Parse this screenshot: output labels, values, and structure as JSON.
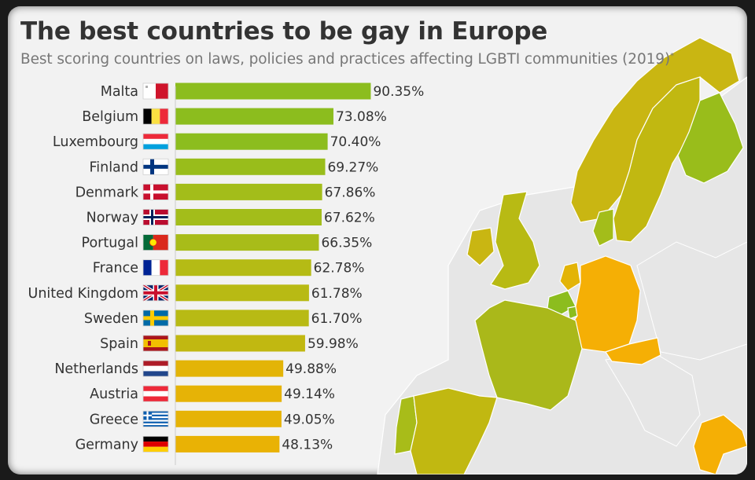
{
  "header": {
    "title": "The best countries to be gay in Europe",
    "subtitle": "Best scoring countries on laws, policies and practices affecting LGBTI communities (2019)",
    "subtitle_mark": "*"
  },
  "chart_data": {
    "type": "bar",
    "orientation": "horizontal",
    "title": "The best countries to be gay in Europe",
    "subtitle": "Best scoring countries on laws, policies and practices affecting LGBTI communities (2019)*",
    "xlabel": "",
    "ylabel": "",
    "xlim": [
      0,
      100
    ],
    "grid": false,
    "legend": "none",
    "value_suffix": "%",
    "categories": [
      "Malta",
      "Belgium",
      "Luxembourg",
      "Finland",
      "Denmark",
      "Norway",
      "Portugal",
      "France",
      "United Kingdom",
      "Sweden",
      "Spain",
      "Netherlands",
      "Austria",
      "Greece",
      "Germany"
    ],
    "values": [
      90.35,
      73.08,
      70.4,
      69.27,
      67.86,
      67.62,
      66.35,
      62.78,
      61.78,
      61.7,
      59.98,
      49.88,
      49.14,
      49.05,
      48.13
    ],
    "value_labels": [
      "90.35%",
      "73.08%",
      "70.40%",
      "69.27%",
      "67.86%",
      "67.62%",
      "66.35%",
      "62.78%",
      "61.78%",
      "61.70%",
      "59.98%",
      "49.88%",
      "49.14%",
      "49.05%",
      "48.13%"
    ],
    "colors": [
      "#8cbd1e",
      "#8cbd1e",
      "#8cbd1e",
      "#99bd1b",
      "#a3bd1a",
      "#a3bd1a",
      "#a8bc19",
      "#b5bb15",
      "#b8ba14",
      "#b8ba14",
      "#c1b811",
      "#e3b407",
      "#e6b306",
      "#e6b306",
      "#e9b205"
    ],
    "flags": [
      "flag-malta",
      "flag-belgium",
      "flag-luxembourg",
      "flag-finland",
      "flag-denmark",
      "flag-norway",
      "flag-portugal",
      "flag-france",
      "flag-united-kingdom",
      "flag-sweden",
      "flag-spain",
      "flag-netherlands",
      "flag-austria",
      "flag-greece",
      "flag-germany"
    ]
  },
  "map_colors": {
    "background": "#e6e6e6",
    "sea": "#f2f2f2",
    "green": "#8cbd1e",
    "olive": "#aab81a",
    "mustard": "#c9b612",
    "orange": "#f5af05"
  }
}
